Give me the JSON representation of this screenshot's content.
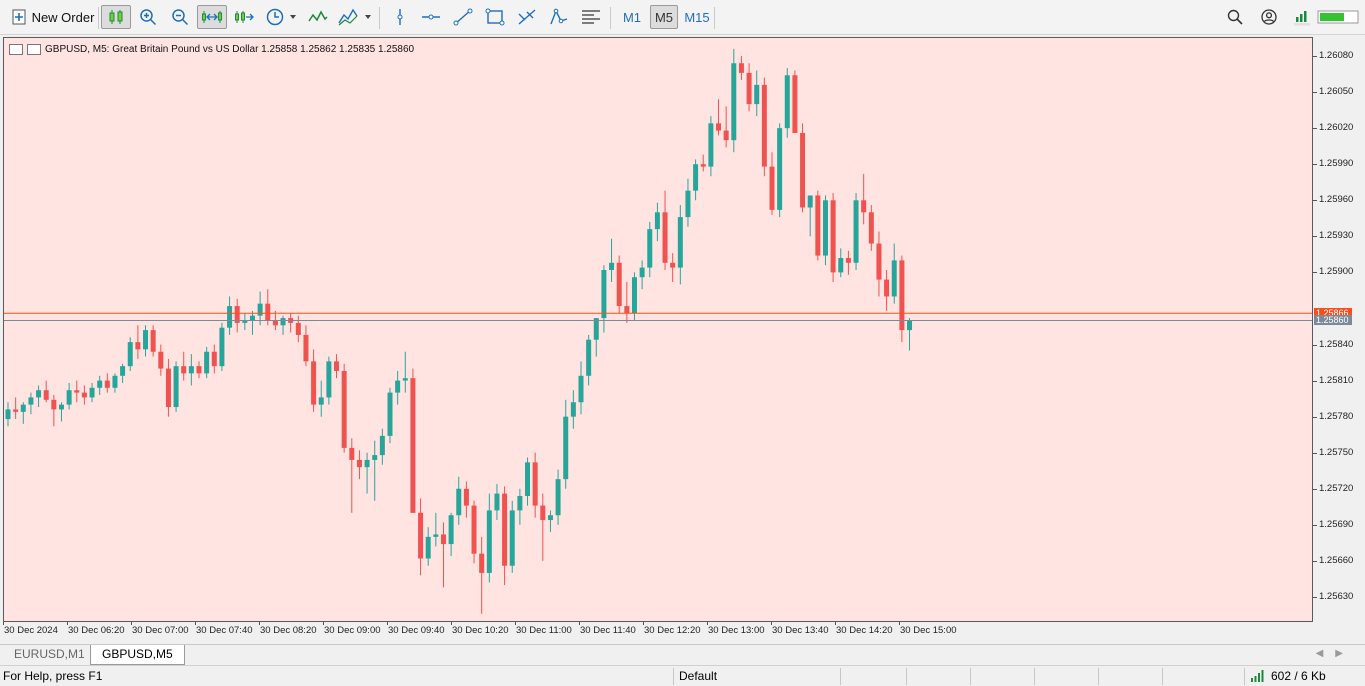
{
  "toolbar": {
    "new_order_label": "New Order",
    "timeframes": [
      "M1",
      "M5",
      "M15"
    ],
    "active_timeframe": "M5"
  },
  "chart": {
    "header": "GBPUSD, M5:  Great Britain Pound vs US Dollar  1.25858 1.25862 1.25835 1.25860",
    "colors": {
      "background": "#ffe4e2",
      "bull": "#26a69a",
      "bear": "#ef5350",
      "ask_line": "#ff4d1a",
      "bid_line": "#7a8a99"
    },
    "ask_price": "1.25866",
    "bid_price": "1.25860"
  },
  "chart_data": {
    "type": "candlestick",
    "symbol": "GBPUSD",
    "timeframe": "M5",
    "ylim": [
      1.2561,
      1.26095
    ],
    "y_ticks": [
      "1.26080",
      "1.26050",
      "1.26020",
      "1.25990",
      "1.25960",
      "1.25930",
      "1.25900",
      "1.25840",
      "1.25810",
      "1.25780",
      "1.25750",
      "1.25720",
      "1.25690",
      "1.25660",
      "1.25630"
    ],
    "x_ticks": [
      "30 Dec 2024",
      "30 Dec 06:20",
      "30 Dec 07:00",
      "30 Dec 07:40",
      "30 Dec 08:20",
      "30 Dec 09:00",
      "30 Dec 09:40",
      "30 Dec 10:20",
      "30 Dec 11:00",
      "30 Dec 11:40",
      "30 Dec 12:20",
      "30 Dec 13:00",
      "30 Dec 13:40",
      "30 Dec 14:20",
      "30 Dec 15:00"
    ],
    "candles": [
      [
        1.25778,
        1.25792,
        1.25772,
        1.25786
      ],
      [
        1.25786,
        1.25796,
        1.25778,
        1.25784
      ],
      [
        1.25784,
        1.25792,
        1.25774,
        1.2579
      ],
      [
        1.2579,
        1.258,
        1.25782,
        1.25796
      ],
      [
        1.25796,
        1.25806,
        1.25788,
        1.25802
      ],
      [
        1.25802,
        1.2581,
        1.25792,
        1.25794
      ],
      [
        1.25794,
        1.25798,
        1.25772,
        1.25786
      ],
      [
        1.25786,
        1.25792,
        1.25776,
        1.2579
      ],
      [
        1.2579,
        1.25808,
        1.25786,
        1.25802
      ],
      [
        1.25802,
        1.2581,
        1.25792,
        1.258
      ],
      [
        1.258,
        1.25806,
        1.2579,
        1.25796
      ],
      [
        1.25796,
        1.25808,
        1.25792,
        1.25804
      ],
      [
        1.25804,
        1.25814,
        1.25798,
        1.2581
      ],
      [
        1.2581,
        1.25816,
        1.258,
        1.25804
      ],
      [
        1.25804,
        1.25816,
        1.258,
        1.25814
      ],
      [
        1.25814,
        1.25824,
        1.25808,
        1.25822
      ],
      [
        1.25822,
        1.25846,
        1.25818,
        1.25842
      ],
      [
        1.25842,
        1.25856,
        1.25828,
        1.25836
      ],
      [
        1.25836,
        1.25856,
        1.2583,
        1.25852
      ],
      [
        1.25852,
        1.25856,
        1.2583,
        1.25834
      ],
      [
        1.25834,
        1.2584,
        1.25814,
        1.2582
      ],
      [
        1.2582,
        1.25828,
        1.2578,
        1.25788
      ],
      [
        1.25788,
        1.25826,
        1.25784,
        1.25822
      ],
      [
        1.25822,
        1.25834,
        1.2581,
        1.25816
      ],
      [
        1.25816,
        1.25832,
        1.25806,
        1.25822
      ],
      [
        1.25822,
        1.25826,
        1.25812,
        1.25816
      ],
      [
        1.25816,
        1.25838,
        1.25812,
        1.25834
      ],
      [
        1.25834,
        1.2584,
        1.25816,
        1.25822
      ],
      [
        1.25822,
        1.25858,
        1.25818,
        1.25854
      ],
      [
        1.25854,
        1.2588,
        1.25848,
        1.25872
      ],
      [
        1.25872,
        1.25878,
        1.2585,
        1.25858
      ],
      [
        1.25858,
        1.25866,
        1.25852,
        1.2586
      ],
      [
        1.2586,
        1.25868,
        1.25848,
        1.25864
      ],
      [
        1.25864,
        1.25884,
        1.25856,
        1.25874
      ],
      [
        1.25874,
        1.25886,
        1.25856,
        1.2586
      ],
      [
        1.2586,
        1.25868,
        1.25852,
        1.25856
      ],
      [
        1.25856,
        1.25864,
        1.25848,
        1.25862
      ],
      [
        1.25862,
        1.25866,
        1.2585,
        1.25858
      ],
      [
        1.25858,
        1.25864,
        1.25842,
        1.25848
      ],
      [
        1.25848,
        1.25856,
        1.25822,
        1.25826
      ],
      [
        1.25826,
        1.25836,
        1.25784,
        1.2579
      ],
      [
        1.2579,
        1.2581,
        1.2578,
        1.25796
      ],
      [
        1.25796,
        1.2583,
        1.2579,
        1.25826
      ],
      [
        1.25826,
        1.25832,
        1.25812,
        1.25818
      ],
      [
        1.25818,
        1.25824,
        1.2575,
        1.25754
      ],
      [
        1.25754,
        1.25762,
        1.257,
        1.25744
      ],
      [
        1.25744,
        1.25752,
        1.25728,
        1.25738
      ],
      [
        1.25738,
        1.2575,
        1.25716,
        1.25744
      ],
      [
        1.25744,
        1.2576,
        1.2571,
        1.25748
      ],
      [
        1.25748,
        1.2577,
        1.2574,
        1.25764
      ],
      [
        1.25764,
        1.25804,
        1.25758,
        1.258
      ],
      [
        1.258,
        1.25818,
        1.2579,
        1.2581
      ],
      [
        1.2581,
        1.25834,
        1.258,
        1.25812
      ],
      [
        1.25812,
        1.2582,
        1.257,
        1.257
      ],
      [
        1.257,
        1.25712,
        1.25648,
        1.25662
      ],
      [
        1.25662,
        1.25688,
        1.25656,
        1.2568
      ],
      [
        1.2568,
        1.257,
        1.25672,
        1.25682
      ],
      [
        1.25682,
        1.25692,
        1.25638,
        1.25674
      ],
      [
        1.25674,
        1.257,
        1.25664,
        1.25698
      ],
      [
        1.25698,
        1.2573,
        1.2569,
        1.2572
      ],
      [
        1.2572,
        1.25726,
        1.25696,
        1.25706
      ],
      [
        1.25706,
        1.2571,
        1.25658,
        1.25666
      ],
      [
        1.25666,
        1.2568,
        1.25616,
        1.2565
      ],
      [
        1.2565,
        1.25716,
        1.25642,
        1.25702
      ],
      [
        1.25702,
        1.25724,
        1.25694,
        1.25716
      ],
      [
        1.25716,
        1.25722,
        1.2564,
        1.25656
      ],
      [
        1.25656,
        1.2571,
        1.2565,
        1.25702
      ],
      [
        1.25702,
        1.2572,
        1.2569,
        1.25714
      ],
      [
        1.25714,
        1.25746,
        1.25706,
        1.25742
      ],
      [
        1.25742,
        1.2575,
        1.25696,
        1.25706
      ],
      [
        1.25706,
        1.25716,
        1.2566,
        1.25694
      ],
      [
        1.25694,
        1.25702,
        1.25684,
        1.25698
      ],
      [
        1.25698,
        1.25736,
        1.2569,
        1.25728
      ],
      [
        1.25728,
        1.25794,
        1.2572,
        1.2578
      ],
      [
        1.2578,
        1.25802,
        1.2577,
        1.25792
      ],
      [
        1.25792,
        1.25826,
        1.25782,
        1.25814
      ],
      [
        1.25814,
        1.25848,
        1.25806,
        1.25844
      ],
      [
        1.25844,
        1.2586,
        1.2583,
        1.25862
      ],
      [
        1.25862,
        1.25906,
        1.2585,
        1.25902
      ],
      [
        1.25902,
        1.25928,
        1.25892,
        1.25908
      ],
      [
        1.25908,
        1.25914,
        1.25866,
        1.25872
      ],
      [
        1.25872,
        1.25892,
        1.25858,
        1.25866
      ],
      [
        1.25866,
        1.259,
        1.2586,
        1.25896
      ],
      [
        1.25896,
        1.2591,
        1.25886,
        1.25904
      ],
      [
        1.25904,
        1.25942,
        1.25896,
        1.25936
      ],
      [
        1.25936,
        1.25958,
        1.25926,
        1.2595
      ],
      [
        1.2595,
        1.25968,
        1.25902,
        1.25908
      ],
      [
        1.25908,
        1.25916,
        1.25892,
        1.25904
      ],
      [
        1.25904,
        1.25956,
        1.2589,
        1.25946
      ],
      [
        1.25946,
        1.25978,
        1.25938,
        1.25968
      ],
      [
        1.25968,
        1.25994,
        1.2596,
        1.2599
      ],
      [
        1.2599,
        1.25998,
        1.25984,
        1.25988
      ],
      [
        1.25988,
        1.2603,
        1.2598,
        1.26024
      ],
      [
        1.26024,
        1.26044,
        1.26014,
        1.26018
      ],
      [
        1.26018,
        1.26038,
        1.26004,
        1.2601
      ],
      [
        1.2601,
        1.26086,
        1.26,
        1.26074
      ],
      [
        1.26074,
        1.2608,
        1.2606,
        1.26066
      ],
      [
        1.26066,
        1.26074,
        1.26034,
        1.2604
      ],
      [
        1.2604,
        1.26068,
        1.2603,
        1.26056
      ],
      [
        1.26056,
        1.26062,
        1.2598,
        1.25988
      ],
      [
        1.25988,
        1.26,
        1.25948,
        1.25952
      ],
      [
        1.25952,
        1.26024,
        1.25946,
        1.2602
      ],
      [
        1.2602,
        1.2607,
        1.26012,
        1.26064
      ],
      [
        1.26064,
        1.26068,
        1.26016,
        1.26016
      ],
      [
        1.26016,
        1.26024,
        1.2595,
        1.25954
      ],
      [
        1.25954,
        1.25964,
        1.2593,
        1.25964
      ],
      [
        1.25964,
        1.25968,
        1.2591,
        1.25914
      ],
      [
        1.25914,
        1.25964,
        1.25906,
        1.2596
      ],
      [
        1.2596,
        1.25966,
        1.25892,
        1.259
      ],
      [
        1.259,
        1.2592,
        1.25896,
        1.25912
      ],
      [
        1.25912,
        1.25918,
        1.25898,
        1.25908
      ],
      [
        1.25908,
        1.25966,
        1.25902,
        1.2596
      ],
      [
        1.2596,
        1.25982,
        1.2594,
        1.2595
      ],
      [
        1.2595,
        1.25956,
        1.25918,
        1.25924
      ],
      [
        1.25924,
        1.25934,
        1.2588,
        1.25894
      ],
      [
        1.25894,
        1.25902,
        1.25868,
        1.2588
      ],
      [
        1.2588,
        1.25924,
        1.25874,
        1.2591
      ],
      [
        1.2591,
        1.25914,
        1.25842,
        1.25852
      ],
      [
        1.25852,
        1.25862,
        1.25835,
        1.2586
      ]
    ]
  },
  "tabs": [
    {
      "label": "EURUSD,M1",
      "active": false
    },
    {
      "label": "GBPUSD,M5",
      "active": true
    }
  ],
  "status": {
    "help": "For Help, press F1",
    "profile": "Default",
    "traffic": "602 / 6 Kb"
  }
}
